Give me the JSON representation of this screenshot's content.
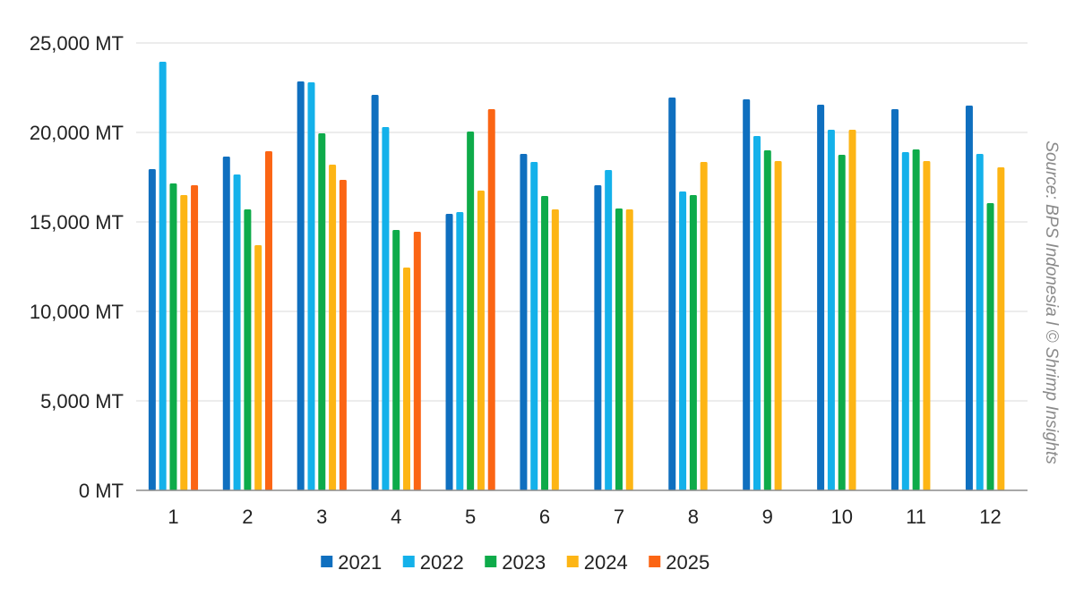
{
  "chart_data": {
    "type": "bar",
    "title": "",
    "xlabel": "",
    "ylabel": "",
    "categories": [
      "1",
      "2",
      "3",
      "4",
      "5",
      "6",
      "7",
      "8",
      "9",
      "10",
      "11",
      "12"
    ],
    "ylim": [
      0,
      25000
    ],
    "y_ticks": [
      0,
      5000,
      10000,
      15000,
      20000,
      25000
    ],
    "y_tick_labels": [
      "0 MT",
      "5,000 MT",
      "10,000 MT",
      "15,000 MT",
      "20,000 MT",
      "25,000 MT"
    ],
    "grid": true,
    "legend_position": "bottom",
    "series": [
      {
        "name": "2021",
        "color": "#0f6fbf",
        "values": [
          17950,
          18650,
          22850,
          22100,
          15450,
          18800,
          17050,
          21950,
          21850,
          21550,
          21300,
          21500
        ]
      },
      {
        "name": "2022",
        "color": "#14b1ea",
        "values": [
          23950,
          17650,
          22800,
          20300,
          15550,
          18350,
          17900,
          16700,
          19800,
          20150,
          18900,
          18800
        ]
      },
      {
        "name": "2023",
        "color": "#0eab4a",
        "values": [
          17150,
          15700,
          19950,
          14550,
          20050,
          16450,
          15750,
          16500,
          19000,
          18750,
          19050,
          16050
        ]
      },
      {
        "name": "2024",
        "color": "#fdb515",
        "values": [
          16500,
          13700,
          18200,
          12450,
          16750,
          15700,
          15700,
          18350,
          18400,
          20150,
          18400,
          18050
        ]
      },
      {
        "name": "2025",
        "color": "#fb6514",
        "values": [
          17050,
          18950,
          17350,
          14450,
          21300,
          null,
          null,
          null,
          null,
          null,
          null,
          null
        ]
      }
    ]
  },
  "source_note": "Source: BPS Indonesia l © Shrimp Insights"
}
